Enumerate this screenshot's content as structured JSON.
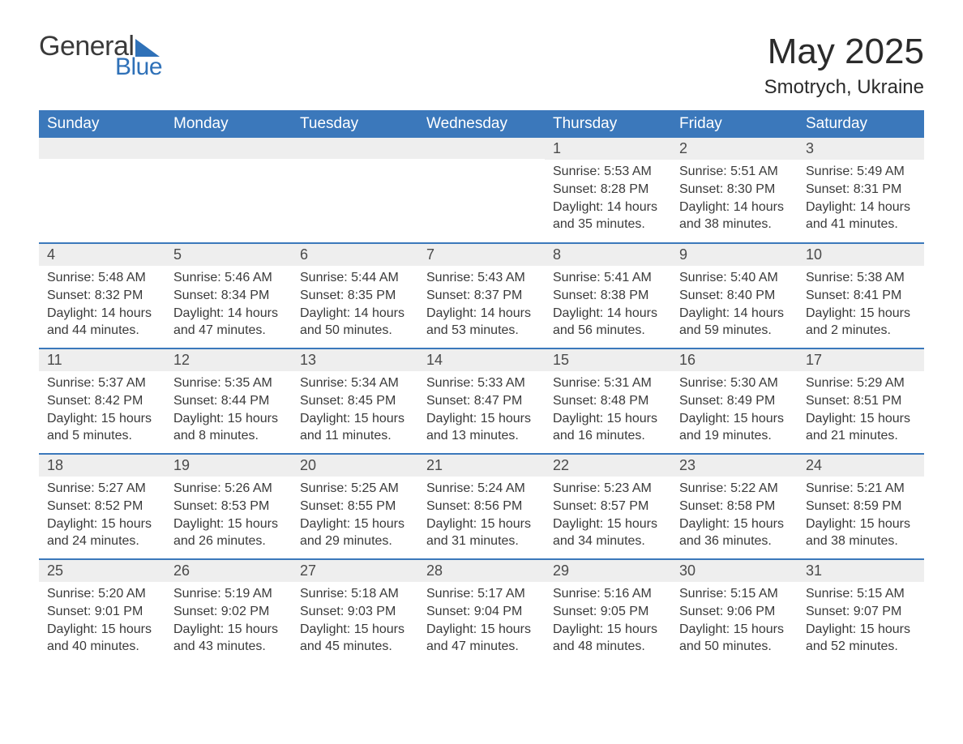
{
  "logo": {
    "general": "General",
    "blue": "Blue"
  },
  "title": "May 2025",
  "location": "Smotrych, Ukraine",
  "colors": {
    "header_bg": "#3b78bb",
    "header_text": "#ffffff",
    "daynum_bg": "#eeeeee",
    "row_border": "#3b78bb",
    "logo_blue": "#2f71b8",
    "text": "#3a3a3a"
  },
  "weekdays": [
    "Sunday",
    "Monday",
    "Tuesday",
    "Wednesday",
    "Thursday",
    "Friday",
    "Saturday"
  ],
  "weeks": [
    [
      null,
      null,
      null,
      null,
      {
        "n": "1",
        "sr": "Sunrise: 5:53 AM",
        "ss": "Sunset: 8:28 PM",
        "dl": "Daylight: 14 hours and 35 minutes."
      },
      {
        "n": "2",
        "sr": "Sunrise: 5:51 AM",
        "ss": "Sunset: 8:30 PM",
        "dl": "Daylight: 14 hours and 38 minutes."
      },
      {
        "n": "3",
        "sr": "Sunrise: 5:49 AM",
        "ss": "Sunset: 8:31 PM",
        "dl": "Daylight: 14 hours and 41 minutes."
      }
    ],
    [
      {
        "n": "4",
        "sr": "Sunrise: 5:48 AM",
        "ss": "Sunset: 8:32 PM",
        "dl": "Daylight: 14 hours and 44 minutes."
      },
      {
        "n": "5",
        "sr": "Sunrise: 5:46 AM",
        "ss": "Sunset: 8:34 PM",
        "dl": "Daylight: 14 hours and 47 minutes."
      },
      {
        "n": "6",
        "sr": "Sunrise: 5:44 AM",
        "ss": "Sunset: 8:35 PM",
        "dl": "Daylight: 14 hours and 50 minutes."
      },
      {
        "n": "7",
        "sr": "Sunrise: 5:43 AM",
        "ss": "Sunset: 8:37 PM",
        "dl": "Daylight: 14 hours and 53 minutes."
      },
      {
        "n": "8",
        "sr": "Sunrise: 5:41 AM",
        "ss": "Sunset: 8:38 PM",
        "dl": "Daylight: 14 hours and 56 minutes."
      },
      {
        "n": "9",
        "sr": "Sunrise: 5:40 AM",
        "ss": "Sunset: 8:40 PM",
        "dl": "Daylight: 14 hours and 59 minutes."
      },
      {
        "n": "10",
        "sr": "Sunrise: 5:38 AM",
        "ss": "Sunset: 8:41 PM",
        "dl": "Daylight: 15 hours and 2 minutes."
      }
    ],
    [
      {
        "n": "11",
        "sr": "Sunrise: 5:37 AM",
        "ss": "Sunset: 8:42 PM",
        "dl": "Daylight: 15 hours and 5 minutes."
      },
      {
        "n": "12",
        "sr": "Sunrise: 5:35 AM",
        "ss": "Sunset: 8:44 PM",
        "dl": "Daylight: 15 hours and 8 minutes."
      },
      {
        "n": "13",
        "sr": "Sunrise: 5:34 AM",
        "ss": "Sunset: 8:45 PM",
        "dl": "Daylight: 15 hours and 11 minutes."
      },
      {
        "n": "14",
        "sr": "Sunrise: 5:33 AM",
        "ss": "Sunset: 8:47 PM",
        "dl": "Daylight: 15 hours and 13 minutes."
      },
      {
        "n": "15",
        "sr": "Sunrise: 5:31 AM",
        "ss": "Sunset: 8:48 PM",
        "dl": "Daylight: 15 hours and 16 minutes."
      },
      {
        "n": "16",
        "sr": "Sunrise: 5:30 AM",
        "ss": "Sunset: 8:49 PM",
        "dl": "Daylight: 15 hours and 19 minutes."
      },
      {
        "n": "17",
        "sr": "Sunrise: 5:29 AM",
        "ss": "Sunset: 8:51 PM",
        "dl": "Daylight: 15 hours and 21 minutes."
      }
    ],
    [
      {
        "n": "18",
        "sr": "Sunrise: 5:27 AM",
        "ss": "Sunset: 8:52 PM",
        "dl": "Daylight: 15 hours and 24 minutes."
      },
      {
        "n": "19",
        "sr": "Sunrise: 5:26 AM",
        "ss": "Sunset: 8:53 PM",
        "dl": "Daylight: 15 hours and 26 minutes."
      },
      {
        "n": "20",
        "sr": "Sunrise: 5:25 AM",
        "ss": "Sunset: 8:55 PM",
        "dl": "Daylight: 15 hours and 29 minutes."
      },
      {
        "n": "21",
        "sr": "Sunrise: 5:24 AM",
        "ss": "Sunset: 8:56 PM",
        "dl": "Daylight: 15 hours and 31 minutes."
      },
      {
        "n": "22",
        "sr": "Sunrise: 5:23 AM",
        "ss": "Sunset: 8:57 PM",
        "dl": "Daylight: 15 hours and 34 minutes."
      },
      {
        "n": "23",
        "sr": "Sunrise: 5:22 AM",
        "ss": "Sunset: 8:58 PM",
        "dl": "Daylight: 15 hours and 36 minutes."
      },
      {
        "n": "24",
        "sr": "Sunrise: 5:21 AM",
        "ss": "Sunset: 8:59 PM",
        "dl": "Daylight: 15 hours and 38 minutes."
      }
    ],
    [
      {
        "n": "25",
        "sr": "Sunrise: 5:20 AM",
        "ss": "Sunset: 9:01 PM",
        "dl": "Daylight: 15 hours and 40 minutes."
      },
      {
        "n": "26",
        "sr": "Sunrise: 5:19 AM",
        "ss": "Sunset: 9:02 PM",
        "dl": "Daylight: 15 hours and 43 minutes."
      },
      {
        "n": "27",
        "sr": "Sunrise: 5:18 AM",
        "ss": "Sunset: 9:03 PM",
        "dl": "Daylight: 15 hours and 45 minutes."
      },
      {
        "n": "28",
        "sr": "Sunrise: 5:17 AM",
        "ss": "Sunset: 9:04 PM",
        "dl": "Daylight: 15 hours and 47 minutes."
      },
      {
        "n": "29",
        "sr": "Sunrise: 5:16 AM",
        "ss": "Sunset: 9:05 PM",
        "dl": "Daylight: 15 hours and 48 minutes."
      },
      {
        "n": "30",
        "sr": "Sunrise: 5:15 AM",
        "ss": "Sunset: 9:06 PM",
        "dl": "Daylight: 15 hours and 50 minutes."
      },
      {
        "n": "31",
        "sr": "Sunrise: 5:15 AM",
        "ss": "Sunset: 9:07 PM",
        "dl": "Daylight: 15 hours and 52 minutes."
      }
    ]
  ]
}
